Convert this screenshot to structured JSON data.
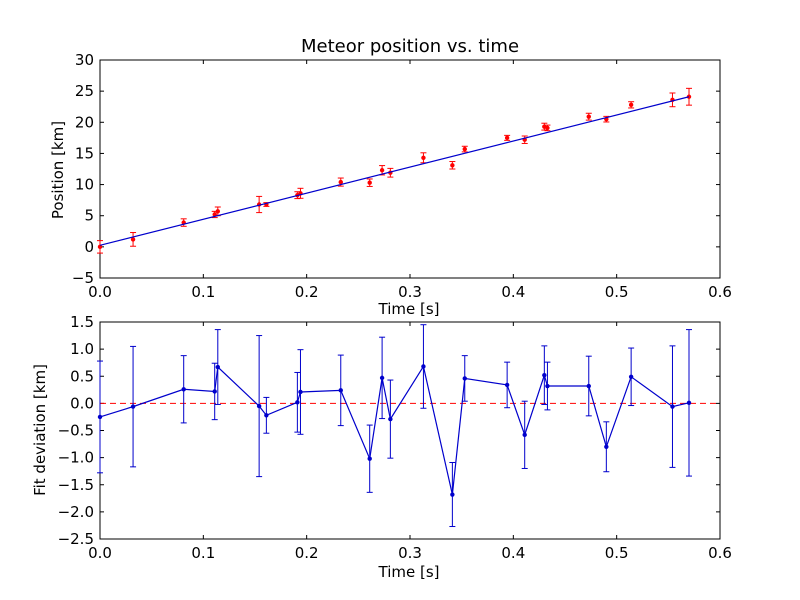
{
  "chart_data": [
    {
      "type": "scatter",
      "title": "Meteor position vs. time",
      "xlabel": "Time [s]",
      "ylabel": "Position [km]",
      "xlim": [
        0.0,
        0.6
      ],
      "ylim": [
        -5,
        30
      ],
      "xticks": [
        "0.0",
        "0.1",
        "0.2",
        "0.3",
        "0.4",
        "0.5",
        "0.6"
      ],
      "yticks": [
        "−5",
        "0",
        "5",
        "10",
        "15",
        "20",
        "25",
        "30"
      ],
      "grid": false,
      "series": [
        {
          "kind": "points-with-error-bars",
          "color": "#ff0000",
          "errorbar_color": "#ff0000",
          "points": [
            {
              "x": 0.0,
              "y": 0.0,
              "err": 1.0
            },
            {
              "x": 0.032,
              "y": 1.2,
              "err": 1.1
            },
            {
              "x": 0.081,
              "y": 3.9,
              "err": 0.6
            },
            {
              "x": 0.111,
              "y": 5.2,
              "err": 0.5
            },
            {
              "x": 0.114,
              "y": 5.7,
              "err": 0.7
            },
            {
              "x": 0.154,
              "y": 6.8,
              "err": 1.3
            },
            {
              "x": 0.161,
              "y": 6.8,
              "err": 0.3
            },
            {
              "x": 0.191,
              "y": 8.3,
              "err": 0.55
            },
            {
              "x": 0.194,
              "y": 8.6,
              "err": 0.8
            },
            {
              "x": 0.233,
              "y": 10.4,
              "err": 0.65
            },
            {
              "x": 0.261,
              "y": 10.3,
              "err": 0.6
            },
            {
              "x": 0.273,
              "y": 12.3,
              "err": 0.75
            },
            {
              "x": 0.281,
              "y": 11.9,
              "err": 0.7
            },
            {
              "x": 0.313,
              "y": 14.3,
              "err": 0.8
            },
            {
              "x": 0.341,
              "y": 13.1,
              "err": 0.6
            },
            {
              "x": 0.353,
              "y": 15.7,
              "err": 0.45
            },
            {
              "x": 0.394,
              "y": 17.5,
              "err": 0.4
            },
            {
              "x": 0.411,
              "y": 17.2,
              "err": 0.6
            },
            {
              "x": 0.43,
              "y": 19.3,
              "err": 0.55
            },
            {
              "x": 0.433,
              "y": 19.1,
              "err": 0.45
            },
            {
              "x": 0.473,
              "y": 20.9,
              "err": 0.55
            },
            {
              "x": 0.49,
              "y": 20.5,
              "err": 0.45
            },
            {
              "x": 0.514,
              "y": 22.8,
              "err": 0.5
            },
            {
              "x": 0.554,
              "y": 23.6,
              "err": 1.1
            },
            {
              "x": 0.57,
              "y": 24.1,
              "err": 1.35
            }
          ]
        },
        {
          "kind": "fit-line",
          "color": "#0000cc",
          "x": [
            0.0,
            0.57
          ],
          "y": [
            0.25,
            24.1
          ]
        }
      ]
    },
    {
      "type": "line",
      "title": "",
      "xlabel": "Time [s]",
      "ylabel": "Fit deviation [km]",
      "xlim": [
        0.0,
        0.6
      ],
      "ylim": [
        -2.5,
        1.5
      ],
      "xticks": [
        "0.0",
        "0.1",
        "0.2",
        "0.3",
        "0.4",
        "0.5",
        "0.6"
      ],
      "yticks": [
        "−2.5",
        "−2.0",
        "−1.5",
        "−1.0",
        "−0.5",
        "0.0",
        "0.5",
        "1.0",
        "1.5"
      ],
      "grid": false,
      "reference_line": {
        "y": 0.0,
        "color": "#ff0000",
        "style": "dashed"
      },
      "series": [
        {
          "kind": "line-with-error-bars",
          "color": "#0000cc",
          "points": [
            {
              "x": 0.0,
              "y": -0.25,
              "err": 1.03
            },
            {
              "x": 0.032,
              "y": -0.06,
              "err": 1.11
            },
            {
              "x": 0.081,
              "y": 0.26,
              "err": 0.62
            },
            {
              "x": 0.111,
              "y": 0.22,
              "err": 0.52
            },
            {
              "x": 0.114,
              "y": 0.67,
              "err": 0.69
            },
            {
              "x": 0.154,
              "y": -0.05,
              "err": 1.3
            },
            {
              "x": 0.161,
              "y": -0.22,
              "err": 0.33
            },
            {
              "x": 0.191,
              "y": 0.02,
              "err": 0.55
            },
            {
              "x": 0.194,
              "y": 0.21,
              "err": 0.78
            },
            {
              "x": 0.233,
              "y": 0.24,
              "err": 0.65
            },
            {
              "x": 0.261,
              "y": -1.02,
              "err": 0.62
            },
            {
              "x": 0.273,
              "y": 0.47,
              "err": 0.75
            },
            {
              "x": 0.281,
              "y": -0.29,
              "err": 0.72
            },
            {
              "x": 0.313,
              "y": 0.68,
              "err": 0.77
            },
            {
              "x": 0.341,
              "y": -1.68,
              "err": 0.59
            },
            {
              "x": 0.353,
              "y": 0.46,
              "err": 0.42
            },
            {
              "x": 0.394,
              "y": 0.34,
              "err": 0.42
            },
            {
              "x": 0.411,
              "y": -0.58,
              "err": 0.62
            },
            {
              "x": 0.43,
              "y": 0.52,
              "err": 0.54
            },
            {
              "x": 0.433,
              "y": 0.32,
              "err": 0.44
            },
            {
              "x": 0.473,
              "y": 0.32,
              "err": 0.55
            },
            {
              "x": 0.49,
              "y": -0.8,
              "err": 0.46
            },
            {
              "x": 0.514,
              "y": 0.49,
              "err": 0.53
            },
            {
              "x": 0.554,
              "y": -0.06,
              "err": 1.12
            },
            {
              "x": 0.57,
              "y": 0.01,
              "err": 1.35
            }
          ]
        }
      ]
    }
  ]
}
